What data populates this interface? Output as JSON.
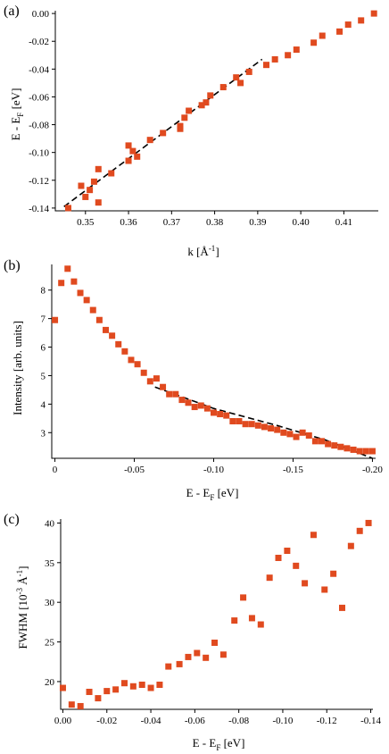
{
  "colors": {
    "marker": "#e04a1f",
    "axis": "#000000"
  },
  "chart_data": [
    {
      "type": "scatter",
      "panel_label": "(a)",
      "xlabel_main": "k [Å",
      "xlabel_sup": "-1",
      "xlabel_end": "]",
      "ylabel_main": "E - E",
      "ylabel_sub": "F",
      "ylabel_end": " [eV]",
      "xlim": [
        0.343,
        0.418
      ],
      "ylim": [
        -0.142,
        0.002
      ],
      "xticks": [
        0.35,
        0.36,
        0.37,
        0.38,
        0.39,
        0.4,
        0.41
      ],
      "xtick_labels": [
        "0.35",
        "0.36",
        "0.37",
        "0.38",
        "0.39",
        "0.40",
        "0.41"
      ],
      "yticks": [
        -0.14,
        -0.12,
        -0.1,
        -0.08,
        -0.06,
        -0.04,
        -0.02,
        0.0
      ],
      "ytick_labels": [
        "-0.14",
        "-0.12",
        "-0.10",
        "-0.08",
        "-0.06",
        "-0.04",
        "-0.02",
        "0.00"
      ],
      "grid": false,
      "series": [
        {
          "values": [
            [
              0.346,
              -0.14
            ],
            [
              0.349,
              -0.124
            ],
            [
              0.35,
              -0.132
            ],
            [
              0.351,
              -0.127
            ],
            [
              0.352,
              -0.121
            ],
            [
              0.353,
              -0.136
            ],
            [
              0.353,
              -0.112
            ],
            [
              0.356,
              -0.115
            ],
            [
              0.36,
              -0.095
            ],
            [
              0.36,
              -0.106
            ],
            [
              0.361,
              -0.099
            ],
            [
              0.362,
              -0.103
            ],
            [
              0.365,
              -0.091
            ],
            [
              0.368,
              -0.086
            ],
            [
              0.372,
              -0.081
            ],
            [
              0.372,
              -0.083
            ],
            [
              0.373,
              -0.075
            ],
            [
              0.374,
              -0.07
            ],
            [
              0.377,
              -0.066
            ],
            [
              0.378,
              -0.064
            ],
            [
              0.379,
              -0.059
            ],
            [
              0.382,
              -0.053
            ],
            [
              0.385,
              -0.046
            ],
            [
              0.386,
              -0.05
            ],
            [
              0.388,
              -0.042
            ],
            [
              0.392,
              -0.037
            ],
            [
              0.394,
              -0.033
            ],
            [
              0.397,
              -0.03
            ],
            [
              0.399,
              -0.026
            ],
            [
              0.403,
              -0.021
            ],
            [
              0.405,
              -0.016
            ],
            [
              0.409,
              -0.013
            ],
            [
              0.411,
              -0.008
            ],
            [
              0.414,
              -0.005
            ],
            [
              0.417,
              0.0
            ]
          ]
        }
      ],
      "fit": [
        [
          0.345,
          -0.139
        ],
        [
          0.391,
          -0.033
        ]
      ]
    },
    {
      "type": "scatter",
      "panel_label": "(b)",
      "xlabel_main": "E - E",
      "xlabel_sub": "F",
      "xlabel_end": " [eV]",
      "ylabel": "Intensity [arb. units]",
      "xlim": [
        0.002,
        -0.202
      ],
      "ylim": [
        2.1,
        8.9
      ],
      "xticks": [
        0,
        -0.05,
        -0.1,
        -0.15,
        -0.2
      ],
      "xtick_labels": [
        "0",
        "-0.05",
        "-0.10",
        "-0.15",
        "-0.20"
      ],
      "yticks": [
        3,
        4,
        5,
        6,
        7,
        8
      ],
      "ytick_labels": [
        "3",
        "4",
        "5",
        "6",
        "7",
        "8"
      ],
      "grid": false,
      "series": [
        {
          "values": [
            [
              0.0,
              6.95
            ],
            [
              -0.004,
              8.25
            ],
            [
              -0.008,
              8.75
            ],
            [
              -0.012,
              8.3
            ],
            [
              -0.016,
              7.9
            ],
            [
              -0.02,
              7.65
            ],
            [
              -0.024,
              7.3
            ],
            [
              -0.028,
              6.95
            ],
            [
              -0.032,
              6.6
            ],
            [
              -0.036,
              6.4
            ],
            [
              -0.04,
              6.1
            ],
            [
              -0.044,
              5.85
            ],
            [
              -0.048,
              5.55
            ],
            [
              -0.052,
              5.4
            ],
            [
              -0.056,
              5.1
            ],
            [
              -0.06,
              4.8
            ],
            [
              -0.064,
              4.9
            ],
            [
              -0.068,
              4.6
            ],
            [
              -0.072,
              4.35
            ],
            [
              -0.076,
              4.35
            ],
            [
              -0.08,
              4.15
            ],
            [
              -0.084,
              4.05
            ],
            [
              -0.088,
              3.9
            ],
            [
              -0.092,
              3.95
            ],
            [
              -0.096,
              3.85
            ],
            [
              -0.1,
              3.7
            ],
            [
              -0.104,
              3.65
            ],
            [
              -0.108,
              3.6
            ],
            [
              -0.112,
              3.4
            ],
            [
              -0.116,
              3.4
            ],
            [
              -0.12,
              3.3
            ],
            [
              -0.124,
              3.3
            ],
            [
              -0.128,
              3.25
            ],
            [
              -0.132,
              3.2
            ],
            [
              -0.136,
              3.15
            ],
            [
              -0.14,
              3.1
            ],
            [
              -0.144,
              3.0
            ],
            [
              -0.148,
              2.95
            ],
            [
              -0.152,
              2.85
            ],
            [
              -0.156,
              3.0
            ],
            [
              -0.16,
              2.9
            ],
            [
              -0.164,
              2.7
            ],
            [
              -0.168,
              2.7
            ],
            [
              -0.172,
              2.6
            ],
            [
              -0.176,
              2.55
            ],
            [
              -0.18,
              2.5
            ],
            [
              -0.184,
              2.45
            ],
            [
              -0.188,
              2.4
            ],
            [
              -0.192,
              2.35
            ],
            [
              -0.196,
              2.35
            ],
            [
              -0.2,
              2.35
            ]
          ]
        }
      ],
      "fit": [
        [
          -0.063,
          4.6
        ],
        [
          -0.1,
          3.85
        ],
        [
          -0.14,
          3.25
        ],
        [
          -0.17,
          2.75
        ],
        [
          -0.2,
          2.1
        ]
      ]
    },
    {
      "type": "scatter",
      "panel_label": "(c)",
      "xlabel_main": "E - E",
      "xlabel_sub": "F",
      "xlabel_end": " [eV]",
      "ylabel_main": "FWHM [10",
      "ylabel_sup1": "-3",
      "ylabel_mid": " Å",
      "ylabel_sup2": "-1",
      "ylabel_end": "]",
      "xlim": [
        0.001,
        -0.141
      ],
      "ylim": [
        16.5,
        40.5
      ],
      "xticks": [
        0,
        -0.02,
        -0.04,
        -0.06,
        -0.08,
        -0.1,
        -0.12,
        -0.14
      ],
      "xtick_labels": [
        "0.00",
        "-0.02",
        "-0.04",
        "-0.06",
        "-0.08",
        "-0.10",
        "-0.12",
        "-0.14"
      ],
      "yticks": [
        20,
        25,
        30,
        35,
        40
      ],
      "ytick_labels": [
        "20",
        "25",
        "30",
        "35",
        "40"
      ],
      "grid": false,
      "series": [
        {
          "values": [
            [
              0.0,
              19.2
            ],
            [
              -0.004,
              17.1
            ],
            [
              -0.008,
              16.9
            ],
            [
              -0.012,
              18.7
            ],
            [
              -0.016,
              17.9
            ],
            [
              -0.02,
              18.8
            ],
            [
              -0.024,
              19.0
            ],
            [
              -0.028,
              19.8
            ],
            [
              -0.032,
              19.4
            ],
            [
              -0.036,
              19.6
            ],
            [
              -0.04,
              19.2
            ],
            [
              -0.044,
              19.6
            ],
            [
              -0.048,
              21.9
            ],
            [
              -0.053,
              22.2
            ],
            [
              -0.057,
              23.1
            ],
            [
              -0.061,
              23.6
            ],
            [
              -0.065,
              23.0
            ],
            [
              -0.069,
              24.9
            ],
            [
              -0.073,
              23.4
            ],
            [
              -0.078,
              27.7
            ],
            [
              -0.082,
              30.6
            ],
            [
              -0.086,
              28.0
            ],
            [
              -0.09,
              27.2
            ],
            [
              -0.094,
              33.1
            ],
            [
              -0.098,
              35.6
            ],
            [
              -0.102,
              36.5
            ],
            [
              -0.106,
              34.6
            ],
            [
              -0.11,
              32.4
            ],
            [
              -0.114,
              38.5
            ],
            [
              -0.119,
              31.6
            ],
            [
              -0.123,
              33.6
            ],
            [
              -0.127,
              29.3
            ],
            [
              -0.131,
              37.1
            ],
            [
              -0.135,
              39.0
            ],
            [
              -0.139,
              40.0
            ]
          ]
        }
      ]
    }
  ]
}
